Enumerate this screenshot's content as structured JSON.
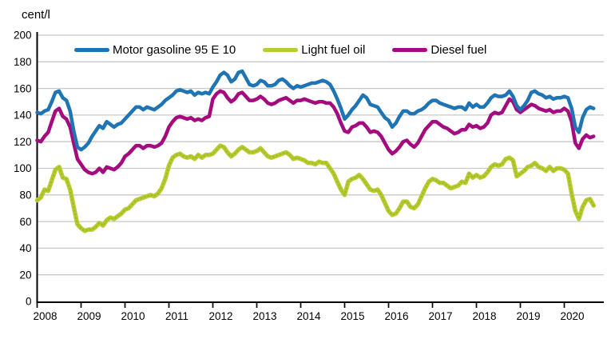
{
  "chart_data": {
    "type": "line",
    "title": "",
    "ylabel": "cent/l",
    "xlabel": "",
    "ylim": [
      0,
      200
    ],
    "yticks": [
      0,
      20,
      40,
      60,
      80,
      100,
      120,
      140,
      160,
      180,
      200
    ],
    "xticks": [
      "2008",
      "2009",
      "2010",
      "2011",
      "2012",
      "2013",
      "2014",
      "2015",
      "2016",
      "2017",
      "2018",
      "2019",
      "2020"
    ],
    "x_frequency": "monthly",
    "x_start": "2008-01",
    "x_end": "2020-09",
    "grid": "horizontal",
    "legend_position": "top",
    "axis_color": "#000000",
    "grid_color": "#c8c8c8",
    "series": [
      {
        "name": "Motor gasoline 95 E 10",
        "color": "#1f74b4",
        "values": [
          142,
          141,
          143,
          144,
          150,
          157,
          158,
          153,
          151,
          143,
          128,
          116,
          114,
          116,
          119,
          124,
          128,
          132,
          130,
          135,
          133,
          131,
          133,
          134,
          137,
          140,
          143,
          146,
          146,
          144,
          146,
          145,
          144,
          146,
          148,
          151,
          153,
          155,
          158,
          159,
          158,
          157,
          158,
          155,
          157,
          156,
          157,
          156,
          161,
          165,
          170,
          172,
          170,
          165,
          167,
          172,
          173,
          168,
          163,
          162,
          163,
          166,
          165,
          162,
          162,
          163,
          166,
          167,
          165,
          162,
          160,
          162,
          161,
          162,
          163,
          164,
          164,
          165,
          166,
          165,
          163,
          158,
          152,
          145,
          137,
          140,
          144,
          147,
          151,
          155,
          153,
          148,
          147,
          146,
          142,
          138,
          136,
          131,
          134,
          139,
          143,
          143,
          141,
          141,
          143,
          144,
          146,
          149,
          151,
          151,
          149,
          148,
          147,
          146,
          145,
          146,
          146,
          144,
          149,
          146,
          148,
          146,
          146,
          149,
          153,
          155,
          154,
          154,
          155,
          158,
          154,
          147,
          144,
          147,
          151,
          157,
          158,
          156,
          155,
          153,
          154,
          152,
          153,
          153,
          154,
          153,
          145,
          131,
          127,
          138,
          144,
          146,
          145
        ]
      },
      {
        "name": "Light fuel oil",
        "color": "#b7cc2f",
        "dot_texture_color": "#a3b525",
        "values": [
          76,
          78,
          84,
          83,
          91,
          99,
          101,
          93,
          92,
          84,
          71,
          58,
          55,
          53,
          54,
          54,
          56,
          59,
          57,
          61,
          63,
          62,
          64,
          66,
          69,
          70,
          73,
          76,
          77,
          78,
          79,
          80,
          79,
          81,
          85,
          92,
          102,
          108,
          110,
          111,
          109,
          108,
          109,
          107,
          110,
          108,
          110,
          110,
          111,
          114,
          117,
          116,
          112,
          109,
          111,
          114,
          116,
          114,
          112,
          112,
          113,
          115,
          112,
          109,
          108,
          109,
          110,
          111,
          112,
          110,
          107,
          108,
          107,
          106,
          104,
          104,
          103,
          105,
          104,
          104,
          100,
          96,
          90,
          84,
          80,
          90,
          92,
          93,
          95,
          92,
          88,
          84,
          83,
          84,
          80,
          74,
          68,
          65,
          66,
          70,
          75,
          75,
          71,
          70,
          73,
          79,
          85,
          90,
          92,
          91,
          89,
          89,
          87,
          85,
          86,
          87,
          90,
          89,
          96,
          93,
          95,
          93,
          94,
          97,
          101,
          103,
          102,
          103,
          107,
          108,
          106,
          94,
          96,
          98,
          101,
          102,
          104,
          101,
          100,
          98,
          101,
          98,
          100,
          100,
          99,
          96,
          81,
          68,
          62,
          71,
          76,
          77,
          72
        ]
      },
      {
        "name": "Diesel fuel",
        "color": "#a30b7e",
        "values": [
          121,
          120,
          124,
          127,
          135,
          143,
          145,
          139,
          137,
          131,
          119,
          107,
          103,
          99,
          97,
          96,
          97,
          100,
          97,
          101,
          100,
          99,
          101,
          104,
          109,
          111,
          114,
          117,
          117,
          115,
          117,
          117,
          116,
          117,
          119,
          124,
          131,
          135,
          138,
          139,
          138,
          137,
          138,
          136,
          137,
          136,
          138,
          139,
          152,
          156,
          158,
          157,
          153,
          150,
          152,
          156,
          157,
          154,
          151,
          151,
          152,
          154,
          152,
          149,
          148,
          149,
          151,
          152,
          153,
          151,
          149,
          151,
          151,
          152,
          151,
          150,
          149,
          150,
          150,
          149,
          149,
          146,
          141,
          134,
          128,
          127,
          131,
          132,
          134,
          134,
          131,
          127,
          128,
          127,
          124,
          119,
          114,
          111,
          113,
          116,
          120,
          121,
          118,
          116,
          119,
          124,
          129,
          132,
          135,
          135,
          133,
          131,
          130,
          128,
          126,
          127,
          129,
          129,
          133,
          131,
          132,
          130,
          131,
          134,
          140,
          142,
          141,
          142,
          147,
          152,
          150,
          144,
          142,
          144,
          146,
          148,
          147,
          145,
          144,
          143,
          144,
          142,
          143,
          143,
          145,
          143,
          135,
          119,
          115,
          122,
          125,
          123,
          124
        ]
      }
    ]
  }
}
